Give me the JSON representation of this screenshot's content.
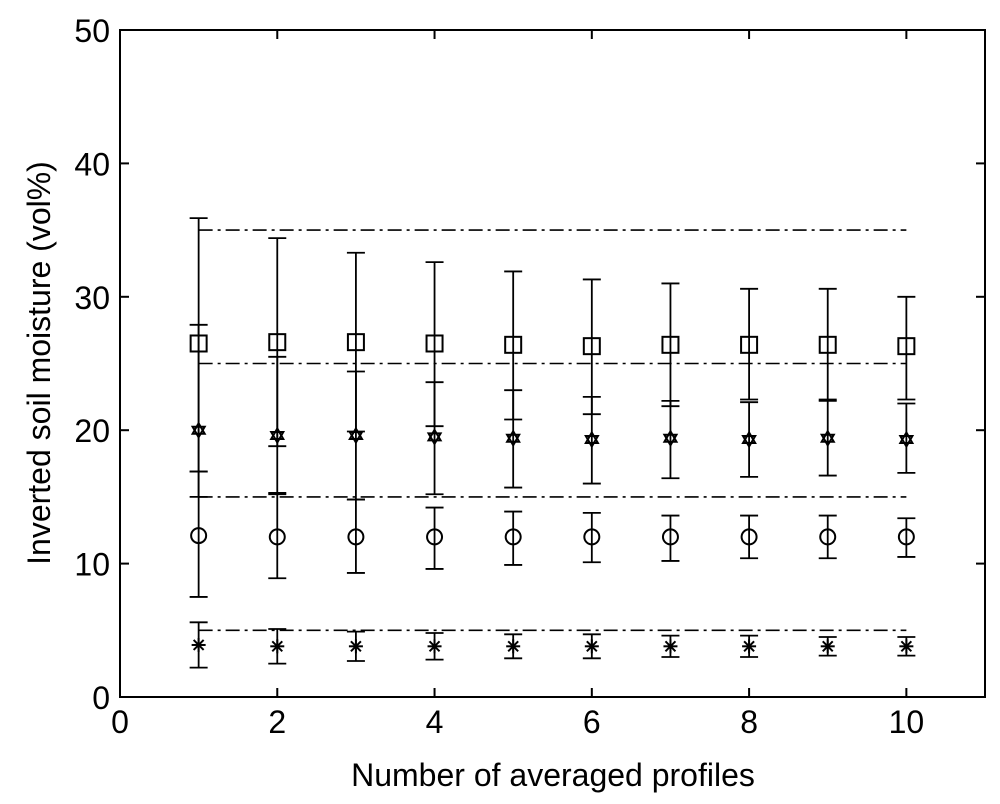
{
  "chart_data": {
    "type": "scatter",
    "title": "",
    "xlabel": "Number of averaged profiles",
    "ylabel": "Inverted soil moisture (vol%)",
    "xlim": [
      0,
      11
    ],
    "ylim": [
      0,
      50
    ],
    "xticks": [
      0,
      2,
      4,
      6,
      8,
      10
    ],
    "yticks": [
      0,
      10,
      20,
      30,
      40,
      50
    ],
    "grid": false,
    "legend": "none",
    "reference_lines": [
      {
        "y": 5,
        "x_range": [
          1,
          10
        ],
        "style": "dash-dot"
      },
      {
        "y": 15,
        "x_range": [
          1,
          10
        ],
        "style": "dash-dot"
      },
      {
        "y": 25,
        "x_range": [
          1,
          10
        ],
        "style": "dash-dot"
      },
      {
        "y": 35,
        "x_range": [
          1,
          10
        ],
        "style": "dash-dot"
      }
    ],
    "x": [
      1,
      2,
      3,
      4,
      5,
      6,
      7,
      8,
      9,
      10
    ],
    "series": [
      {
        "marker": "asterisk",
        "values": [
          3.9,
          3.8,
          3.8,
          3.8,
          3.8,
          3.8,
          3.8,
          3.8,
          3.8,
          3.8
        ],
        "lower": [
          2.2,
          2.5,
          2.7,
          2.8,
          2.9,
          2.9,
          3.0,
          3.0,
          3.1,
          3.1
        ],
        "upper": [
          5.6,
          5.1,
          4.9,
          4.8,
          4.7,
          4.7,
          4.6,
          4.6,
          4.5,
          4.5
        ]
      },
      {
        "marker": "circle",
        "values": [
          12.1,
          12.0,
          12.0,
          12.0,
          12.0,
          12.0,
          12.0,
          12.0,
          12.0,
          12.0
        ],
        "lower": [
          7.5,
          8.9,
          9.3,
          9.6,
          9.9,
          10.1,
          10.2,
          10.4,
          10.4,
          10.5
        ],
        "upper": [
          16.9,
          15.2,
          14.8,
          14.2,
          13.9,
          13.8,
          13.6,
          13.6,
          13.6,
          13.4
        ]
      },
      {
        "marker": "hexagram",
        "values": [
          20.0,
          19.6,
          19.6,
          19.5,
          19.4,
          19.3,
          19.4,
          19.3,
          19.4,
          19.3
        ],
        "lower": [
          15.0,
          15.3,
          14.8,
          15.2,
          15.7,
          16.0,
          16.4,
          16.5,
          16.6,
          16.8
        ],
        "upper": [
          27.9,
          25.5,
          24.4,
          23.6,
          23.0,
          22.5,
          22.2,
          22.1,
          22.2,
          22.0
        ]
      },
      {
        "marker": "square",
        "values": [
          26.5,
          26.6,
          26.6,
          26.5,
          26.4,
          26.3,
          26.4,
          26.4,
          26.4,
          26.3
        ],
        "lower": [
          16.9,
          18.8,
          19.9,
          20.3,
          20.8,
          21.2,
          21.8,
          22.3,
          22.3,
          22.3
        ],
        "upper": [
          35.9,
          34.4,
          33.3,
          32.6,
          31.9,
          31.3,
          31.0,
          30.6,
          30.6,
          30.0
        ]
      }
    ]
  }
}
